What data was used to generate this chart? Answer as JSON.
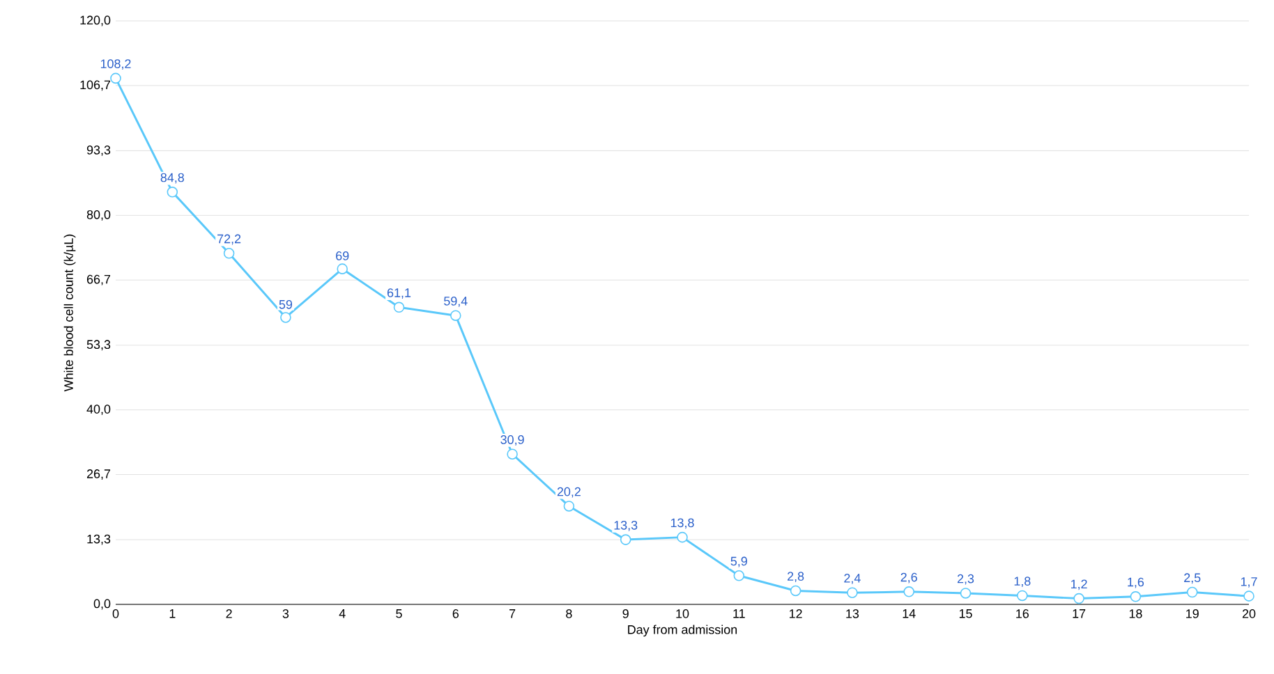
{
  "chart_data": {
    "type": "line",
    "xlabel": "Day from admission",
    "ylabel": "White blood cell count (k/µL)",
    "x": [
      0,
      1,
      2,
      3,
      4,
      5,
      6,
      7,
      8,
      9,
      10,
      11,
      12,
      13,
      14,
      15,
      16,
      17,
      18,
      19,
      20
    ],
    "series": [
      {
        "color": "#5ac8fa",
        "values": [
          108.2,
          84.8,
          72.2,
          59,
          69,
          61.1,
          59.4,
          30.9,
          20.2,
          13.3,
          13.8,
          5.9,
          2.8,
          2.4,
          2.6,
          2.3,
          1.8,
          1.2,
          1.6,
          2.5,
          1.7
        ],
        "value_labels": [
          "108,2",
          "84,8",
          "72,2",
          "59",
          "69",
          "61,1",
          "59,4",
          "30,9",
          "20,2",
          "13,3",
          "13,8",
          "5,9",
          "2,8",
          "2,4",
          "2,6",
          "2,3",
          "1,8",
          "1,2",
          "1,6",
          "2,5",
          "1,7"
        ]
      }
    ],
    "xlim": [
      0,
      20
    ],
    "xticks": [
      0,
      1,
      2,
      3,
      4,
      5,
      6,
      7,
      8,
      9,
      10,
      11,
      12,
      13,
      14,
      15,
      16,
      17,
      18,
      19,
      20
    ],
    "ylim": [
      0,
      120
    ],
    "yticks": [
      {
        "value": 0,
        "label": "0,0"
      },
      {
        "value": 13.3,
        "label": "13,3"
      },
      {
        "value": 26.7,
        "label": "26,7"
      },
      {
        "value": 40,
        "label": "40,0"
      },
      {
        "value": 53.3,
        "label": "53,3"
      },
      {
        "value": 66.7,
        "label": "66,7"
      },
      {
        "value": 80,
        "label": "80,0"
      },
      {
        "value": 93.3,
        "label": "93,3"
      },
      {
        "value": 106.7,
        "label": "106,7"
      },
      {
        "value": 120,
        "label": "120,0"
      }
    ],
    "grid": "y",
    "marker": "circle",
    "line_style": "solid"
  }
}
